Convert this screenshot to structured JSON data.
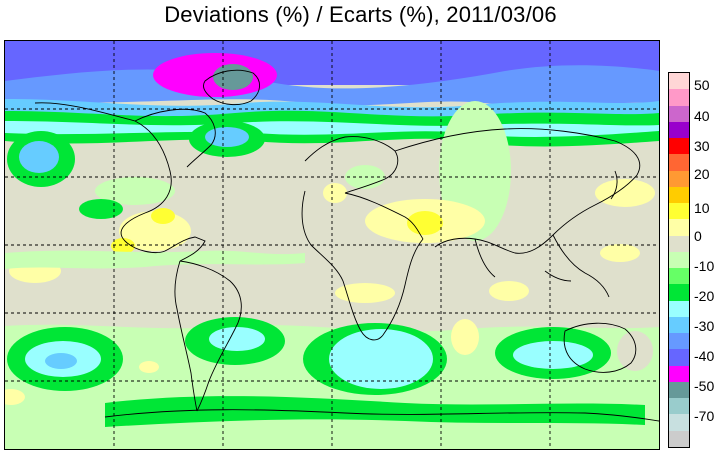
{
  "title": "Deviations (%) / Ecarts (%), 2011/03/06",
  "legend": {
    "colors": [
      "#ffd6d6",
      "#ff99c8",
      "#cc66cc",
      "#9900cc",
      "#ff0000",
      "#ff6633",
      "#ff9933",
      "#ffcc00",
      "#ffff33",
      "#ffffa6",
      "#dfe0cc",
      "#c8ffb4",
      "#66ff66",
      "#00e636",
      "#99ffff",
      "#66ccff",
      "#6699ff",
      "#6666ff",
      "#ff00ff",
      "#669999",
      "#99cccc",
      "#c8e0e0",
      "#cccccc"
    ],
    "labels": [
      "50",
      "40",
      "30",
      "20",
      "10",
      "0",
      "-10",
      "-20",
      "-30",
      "-40",
      "-50",
      "-70"
    ]
  },
  "map": {
    "background_color": "#dfe0cc",
    "coastline_color": "#000000",
    "grid_style": "dashed"
  }
}
